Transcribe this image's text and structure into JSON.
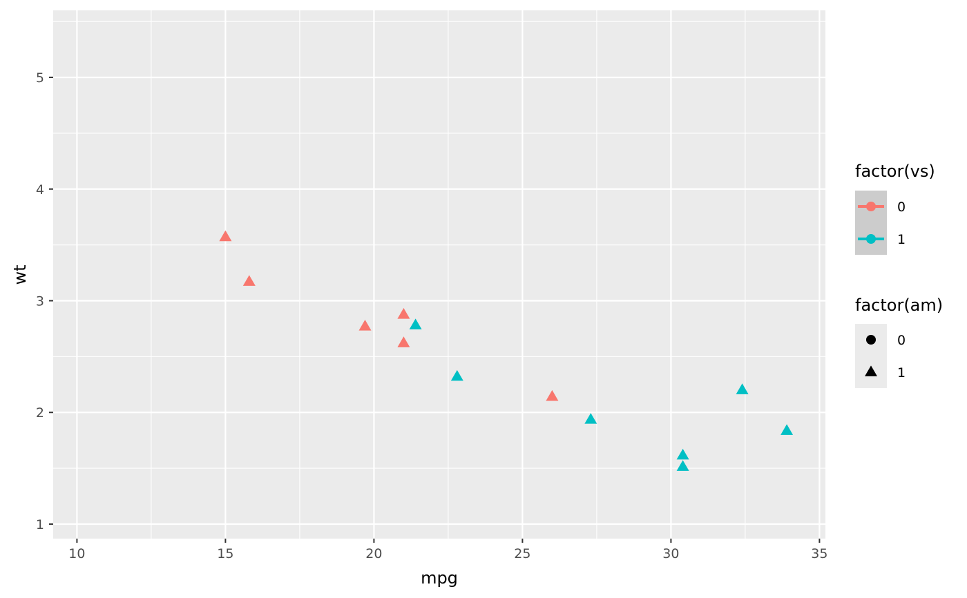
{
  "chart_data": {
    "type": "scatter",
    "xlabel": "mpg",
    "ylabel": "wt",
    "xlim": [
      9.2,
      35.2
    ],
    "ylim": [
      0.87,
      5.6
    ],
    "x_ticks": [
      10,
      15,
      20,
      25,
      30,
      35
    ],
    "y_ticks": [
      1,
      2,
      3,
      4,
      5
    ],
    "grid": true,
    "legend_position": "right",
    "colors": {
      "panel": "#EBEBEB",
      "grid": "#FFFFFF",
      "vs0": "#F8766D",
      "vs1": "#00BFC4",
      "legend_key_color": "#CCCCCC",
      "legend_key_shape": "#EBEBEB"
    },
    "points": [
      {
        "x": 15.0,
        "y": 3.57,
        "vs": "0",
        "am": "1"
      },
      {
        "x": 15.8,
        "y": 3.17,
        "vs": "0",
        "am": "1"
      },
      {
        "x": 19.7,
        "y": 2.77,
        "vs": "0",
        "am": "1"
      },
      {
        "x": 21.0,
        "y": 2.875,
        "vs": "0",
        "am": "1"
      },
      {
        "x": 21.0,
        "y": 2.62,
        "vs": "0",
        "am": "1"
      },
      {
        "x": 21.4,
        "y": 2.78,
        "vs": "1",
        "am": "1"
      },
      {
        "x": 22.8,
        "y": 2.32,
        "vs": "1",
        "am": "1"
      },
      {
        "x": 26.0,
        "y": 2.14,
        "vs": "0",
        "am": "1"
      },
      {
        "x": 27.3,
        "y": 1.935,
        "vs": "1",
        "am": "1"
      },
      {
        "x": 30.4,
        "y": 1.615,
        "vs": "1",
        "am": "1"
      },
      {
        "x": 30.4,
        "y": 1.513,
        "vs": "1",
        "am": "1"
      },
      {
        "x": 32.4,
        "y": 2.2,
        "vs": "1",
        "am": "1"
      },
      {
        "x": 33.9,
        "y": 1.835,
        "vs": "1",
        "am": "1"
      }
    ],
    "legends": [
      {
        "title": "factor(vs)",
        "kind": "color",
        "items": [
          {
            "label": "0",
            "color": "#F8766D"
          },
          {
            "label": "1",
            "color": "#00BFC4"
          }
        ]
      },
      {
        "title": "factor(am)",
        "kind": "shape",
        "items": [
          {
            "label": "0",
            "shape": "circle"
          },
          {
            "label": "1",
            "shape": "triangle"
          }
        ]
      }
    ]
  }
}
